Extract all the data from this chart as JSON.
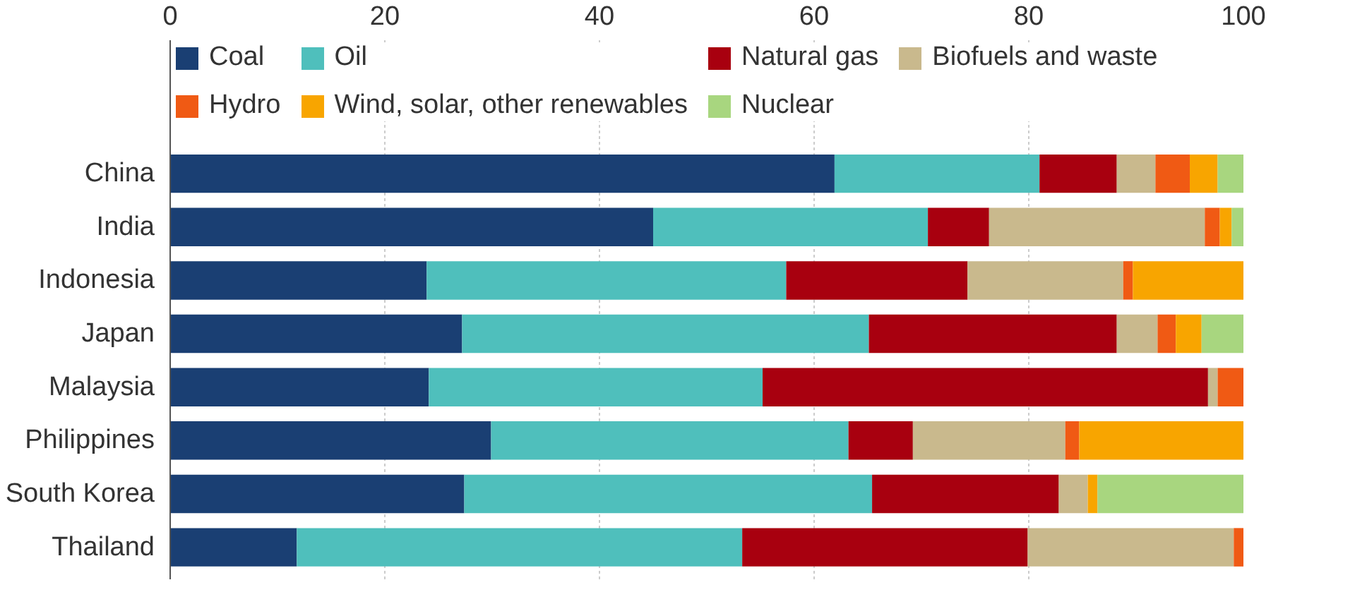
{
  "chart_data": {
    "type": "bar",
    "orientation": "horizontal",
    "stacked": true,
    "categories": [
      "China",
      "India",
      "Indonesia",
      "Japan",
      "Malaysia",
      "Philippines",
      "South Korea",
      "Thailand"
    ],
    "series": [
      {
        "name": "Coal",
        "color": "#1a3f73",
        "values": [
          61.9,
          45.0,
          23.9,
          27.2,
          24.1,
          29.9,
          27.4,
          11.8
        ]
      },
      {
        "name": "Oil",
        "color": "#4fbfbc",
        "values": [
          19.1,
          25.6,
          33.5,
          37.9,
          31.1,
          33.3,
          38.0,
          41.5
        ]
      },
      {
        "name": "Natural gas",
        "color": "#a8000f",
        "values": [
          7.2,
          5.7,
          16.9,
          23.1,
          41.5,
          6.0,
          17.4,
          26.6
        ]
      },
      {
        "name": "Biofuels and waste",
        "color": "#c9b98d",
        "values": [
          3.6,
          20.1,
          14.5,
          3.8,
          0.9,
          14.2,
          2.7,
          19.2
        ]
      },
      {
        "name": "Hydro",
        "color": "#f05a14",
        "values": [
          3.2,
          1.4,
          0.9,
          1.7,
          2.4,
          1.3,
          null,
          0.9
        ]
      },
      {
        "name": "Wind, solar, other renewables",
        "color": "#f8a500",
        "values": [
          2.6,
          1.1,
          10.3,
          2.4,
          null,
          15.3,
          0.9,
          null
        ]
      },
      {
        "name": "Nuclear",
        "color": "#a8d67f",
        "values": [
          2.4,
          1.1,
          null,
          3.9,
          null,
          null,
          13.6,
          null
        ]
      }
    ],
    "xlim": [
      0,
      100
    ],
    "xticks": [
      0,
      20,
      40,
      60,
      80,
      100
    ],
    "grid": "x",
    "legend": "top"
  }
}
